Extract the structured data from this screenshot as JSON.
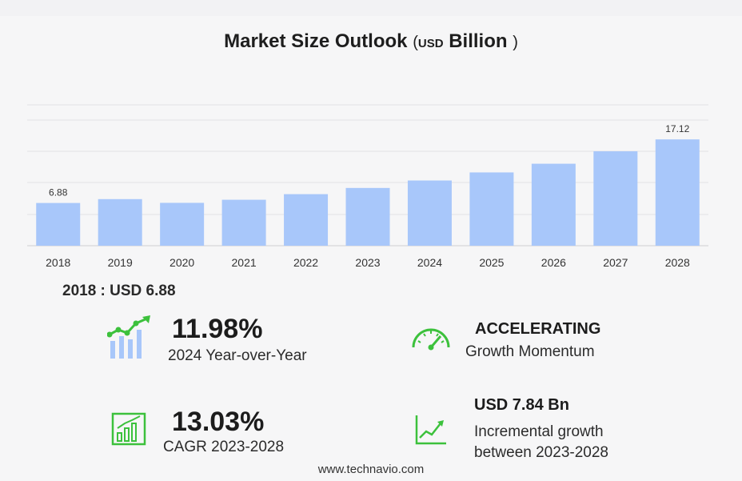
{
  "title": {
    "main": "Market Size Outlook",
    "open": "(",
    "usd": "USD",
    "billion": "Billion",
    "close": ")"
  },
  "chart_data": {
    "type": "bar",
    "categories": [
      "2018",
      "2019",
      "2020",
      "2021",
      "2022",
      "2023",
      "2024",
      "2025",
      "2026",
      "2027",
      "2028"
    ],
    "values": [
      6.88,
      7.5,
      6.9,
      7.4,
      8.3,
      9.3,
      10.5,
      11.8,
      13.2,
      15.2,
      17.12
    ],
    "labels": [
      "6.88",
      "",
      "",
      "",
      "",
      "",
      "",
      "",
      "",
      "",
      "17.12"
    ],
    "ylim": [
      0,
      20
    ],
    "grid": true,
    "bar_color": "#a8c7fa"
  },
  "base": {
    "text": "2018 : USD  6.88"
  },
  "stats": {
    "yoy": {
      "value": "11.98%",
      "label": "2024 Year-over-Year"
    },
    "momentum": {
      "value": "ACCELERATING",
      "label": "Growth Momentum"
    },
    "cagr": {
      "value": "13.03%",
      "label": "CAGR 2023-2028"
    },
    "incremental": {
      "value": "USD 7.84 Bn",
      "label1": "Incremental growth",
      "label2": "between 2023-2028"
    }
  },
  "icons": {
    "yoy": "bar-chart-trend-icon",
    "momentum": "speedometer-icon",
    "cagr": "growth-bars-icon",
    "incremental": "line-growth-icon"
  },
  "accent": "#3cc13c",
  "footer": "www.technavio.com"
}
